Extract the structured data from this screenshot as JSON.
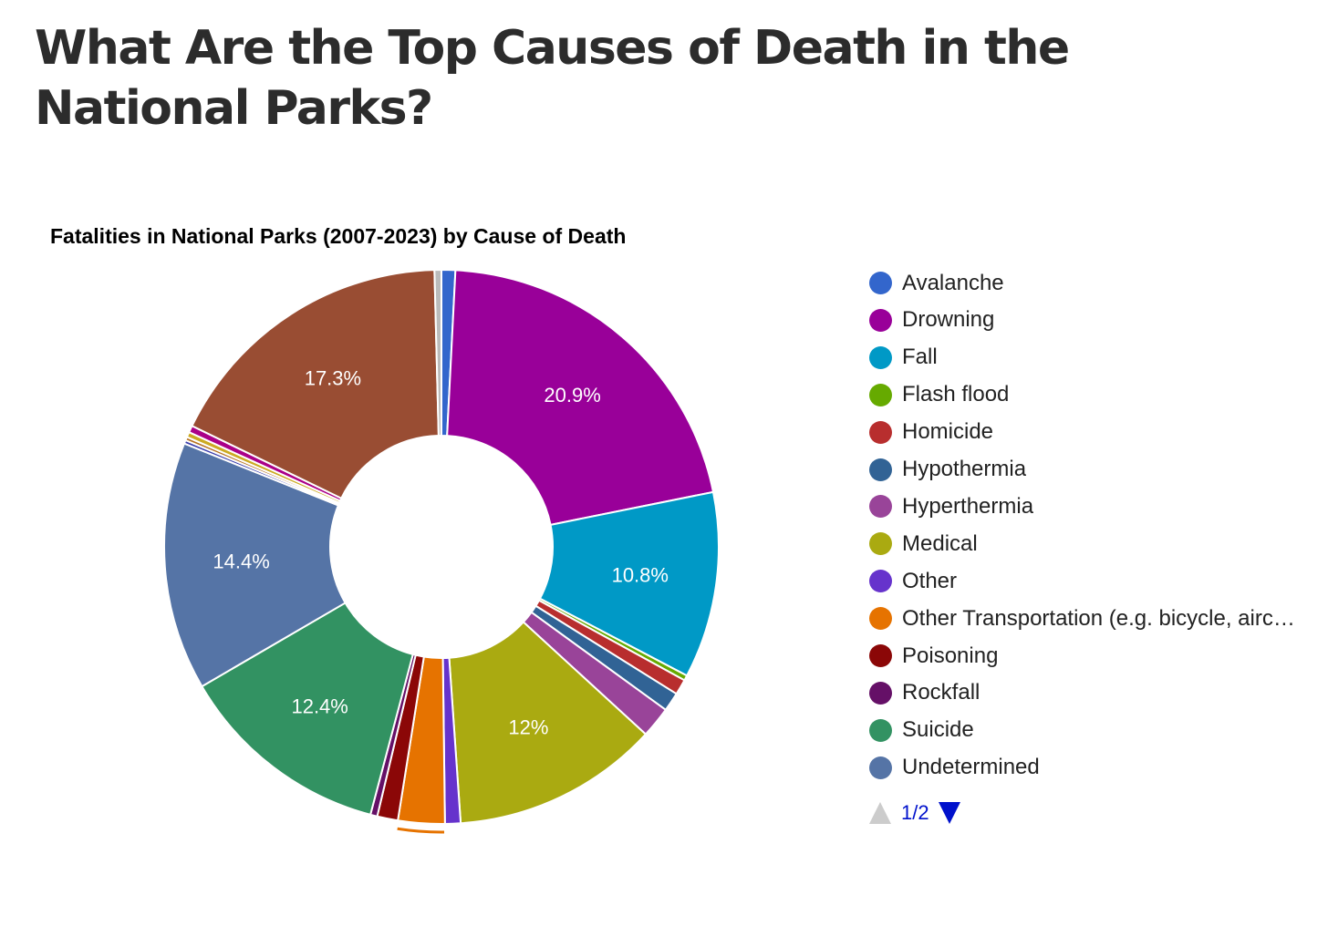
{
  "page": {
    "heading": "What Are the Top Causes of Death in the National Parks?"
  },
  "chart_data": {
    "type": "pie",
    "donut": true,
    "title": "Fatalities in National Parks (2007-2023) by Cause of Death",
    "unit": "percent",
    "slices": [
      {
        "label": "Avalanche",
        "value": 0.8,
        "color": "#3366cc",
        "shown_label": ""
      },
      {
        "label": "Drowning",
        "value": 20.9,
        "color": "#990099",
        "shown_label": "20.9%"
      },
      {
        "label": "Fall",
        "value": 10.8,
        "color": "#0099c6",
        "shown_label": "10.8%"
      },
      {
        "label": "Flash flood",
        "value": 0.3,
        "color": "#66aa00",
        "shown_label": ""
      },
      {
        "label": "Homicide",
        "value": 0.9,
        "color": "#b82e2e",
        "shown_label": ""
      },
      {
        "label": "Hypothermia",
        "value": 1.1,
        "color": "#316395",
        "shown_label": ""
      },
      {
        "label": "Hyperthermia",
        "value": 1.8,
        "color": "#994499",
        "shown_label": ""
      },
      {
        "label": "Medical",
        "value": 12.0,
        "color": "#aaaa11",
        "shown_label": "12%"
      },
      {
        "label": "Other",
        "value": 0.9,
        "color": "#6633cc",
        "shown_label": ""
      },
      {
        "label": "Other Transportation (e.g. bicycle, airc…",
        "value": 2.7,
        "color": "#e67300",
        "shown_label": ""
      },
      {
        "label": "Poisoning",
        "value": 1.2,
        "color": "#8b0707",
        "shown_label": ""
      },
      {
        "label": "Rockfall",
        "value": 0.4,
        "color": "#651067",
        "shown_label": ""
      },
      {
        "label": "Suicide",
        "value": 12.4,
        "color": "#329262",
        "shown_label": "12.4%"
      },
      {
        "label": "Undetermined",
        "value": 14.4,
        "color": "#5574a6",
        "shown_label": "14.4%"
      },
      {
        "value": 0.2,
        "color": "#3b3eac",
        "shown_label": ""
      },
      {
        "value": 0.2,
        "color": "#b77322",
        "shown_label": ""
      },
      {
        "value": 0.3,
        "color": "#ccaa22",
        "shown_label": ""
      },
      {
        "value": 0.4,
        "color": "#aa0088",
        "shown_label": ""
      },
      {
        "value": 17.3,
        "color": "#994d33",
        "shown_label": "17.3%"
      },
      {
        "value": 0.4,
        "color": "#bbbbbb",
        "shown_label": ""
      }
    ],
    "legend_position": "right",
    "legend_page": "1/2"
  }
}
